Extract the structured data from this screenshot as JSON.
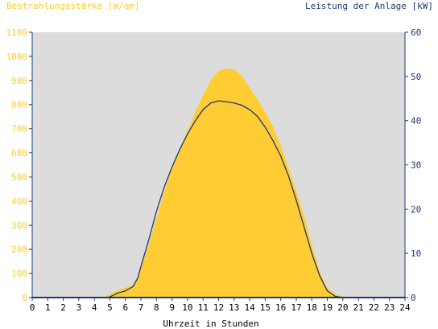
{
  "chart_data": {
    "type": "area",
    "left_axis_label": "Bestrahlungsstärke [W/qm]",
    "right_axis_label": "Leistung der Anlage [kW]",
    "xlabel": "Uhrzeit in Stunden",
    "xlim": [
      0,
      24
    ],
    "y_left_lim": [
      0,
      1100
    ],
    "y_right_lim": [
      0,
      60
    ],
    "x_ticks": [
      "0",
      "1",
      "2",
      "3",
      "4",
      "5",
      "6",
      "7",
      "8",
      "9",
      "10",
      "11",
      "12",
      "13",
      "14",
      "15",
      "16",
      "17",
      "18",
      "19",
      "20",
      "21",
      "22",
      "23",
      "24"
    ],
    "y_left_ticks": [
      "0",
      "100",
      "200",
      "300",
      "400",
      "500",
      "600",
      "700",
      "800",
      "900",
      "1000",
      "1100"
    ],
    "y_right_ticks": [
      "0",
      "10",
      "20",
      "30",
      "40",
      "50",
      "60"
    ],
    "grid": false,
    "colors": {
      "plot_background": "#dcdcdc",
      "irradiance": "#ffcc33",
      "power": "#1f3a75",
      "axis": "#1f3a75"
    },
    "series": [
      {
        "axis": "left",
        "style": "area",
        "x": [
          0,
          4.6,
          5.0,
          5.5,
          6.0,
          6.5,
          6.8,
          7.0,
          7.5,
          8.0,
          8.5,
          9.0,
          9.5,
          10.0,
          10.5,
          11.0,
          11.5,
          12.0,
          12.5,
          13.0,
          13.5,
          14.0,
          14.5,
          15.0,
          15.5,
          16.0,
          16.5,
          17.0,
          17.5,
          18.0,
          18.5,
          19.0,
          19.5,
          20.0,
          20.3,
          24
        ],
        "y": [
          0,
          0,
          15,
          30,
          40,
          55,
          80,
          120,
          220,
          330,
          440,
          540,
          620,
          690,
          770,
          840,
          900,
          940,
          950,
          945,
          920,
          870,
          820,
          770,
          710,
          630,
          540,
          440,
          340,
          220,
          110,
          40,
          15,
          5,
          0,
          0
        ]
      },
      {
        "axis": "right",
        "style": "line",
        "x": [
          0,
          4.9,
          5.2,
          5.5,
          6.0,
          6.5,
          6.8,
          7.0,
          7.5,
          8.0,
          8.5,
          9.0,
          9.5,
          10.0,
          10.5,
          11.0,
          11.5,
          12.0,
          12.5,
          13.0,
          13.5,
          14.0,
          14.5,
          15.0,
          15.5,
          16.0,
          16.5,
          17.0,
          17.5,
          18.0,
          18.5,
          19.0,
          19.5,
          20.0,
          24
        ],
        "y": [
          0,
          0,
          0.5,
          1.0,
          1.5,
          2.5,
          4.5,
          7.0,
          13.0,
          19.5,
          25.0,
          29.5,
          33.5,
          37.0,
          40.0,
          42.5,
          44.0,
          44.5,
          44.3,
          44.0,
          43.5,
          42.5,
          41.0,
          38.5,
          35.5,
          32.0,
          27.5,
          22.0,
          16.0,
          10.0,
          5.0,
          1.5,
          0.3,
          0,
          0
        ]
      }
    ]
  }
}
